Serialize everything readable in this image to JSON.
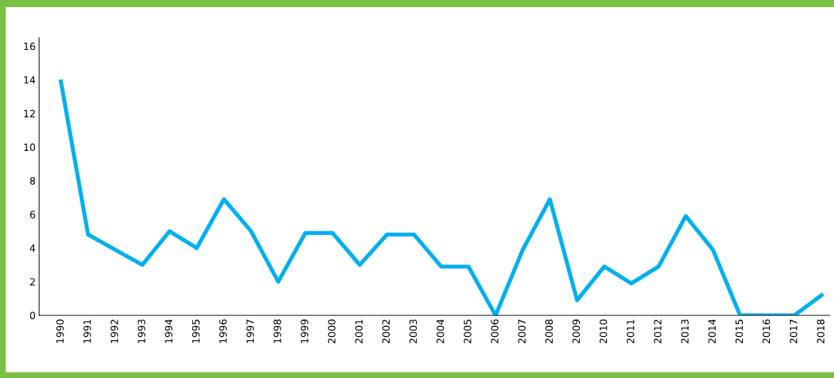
{
  "chart_data": {
    "type": "line",
    "categories": [
      "1990",
      "1991",
      "1992",
      "1993",
      "1994",
      "1995",
      "1996",
      "1997",
      "1998",
      "1999",
      "2000",
      "2001",
      "2002",
      "2003",
      "2004",
      "2005",
      "2006",
      "2007",
      "2008",
      "2009",
      "2010",
      "2011",
      "2012",
      "2013",
      "2014",
      "2015",
      "2016",
      "2017",
      "2018"
    ],
    "series": [
      {
        "color": "#00b0f0",
        "values": [
          13.9,
          4.8,
          3.9,
          3.0,
          5.0,
          4.0,
          6.9,
          5.0,
          2.0,
          4.9,
          4.9,
          3.0,
          4.8,
          4.8,
          2.9,
          2.9,
          0,
          3.9,
          6.9,
          0.9,
          2.9,
          1.9,
          2.9,
          5.9,
          3.9,
          0,
          0,
          0,
          1.2
        ]
      }
    ],
    "ylim": [
      0,
      16.5
    ],
    "yticks": [
      0,
      2,
      4,
      6,
      8,
      10,
      12,
      14,
      16
    ],
    "grid": false,
    "legend": false,
    "marker": "none",
    "line_style": "solid"
  }
}
